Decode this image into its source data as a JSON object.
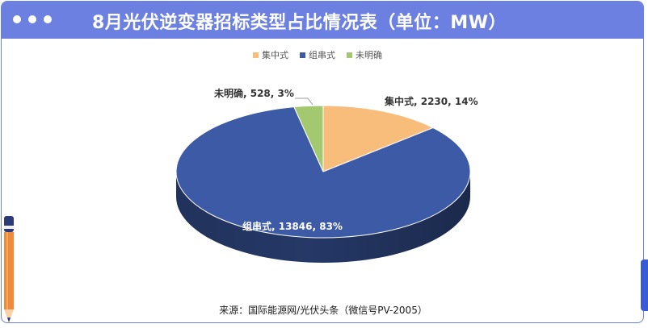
{
  "header": {
    "title": "8月光伏逆变器招标类型占比情况表（单位：MW）"
  },
  "footer": {
    "source": "来源：国际能源网/光伏头条（微信号PV-2005）"
  },
  "chart_data": {
    "type": "pie",
    "style": "3d",
    "categories": [
      "集中式",
      "组串式",
      "未明确"
    ],
    "values": [
      2230,
      13846,
      528
    ],
    "percents": [
      14,
      83,
      3
    ],
    "unit": "MW",
    "legend_position": "top",
    "data_labels": [
      "集中式, 2230, 14%",
      "组串式, 13846, 83%",
      "未明确, 528, 3%"
    ],
    "colors": [
      "#f8bd7a",
      "#3c5aa6",
      "#a3c870"
    ]
  }
}
